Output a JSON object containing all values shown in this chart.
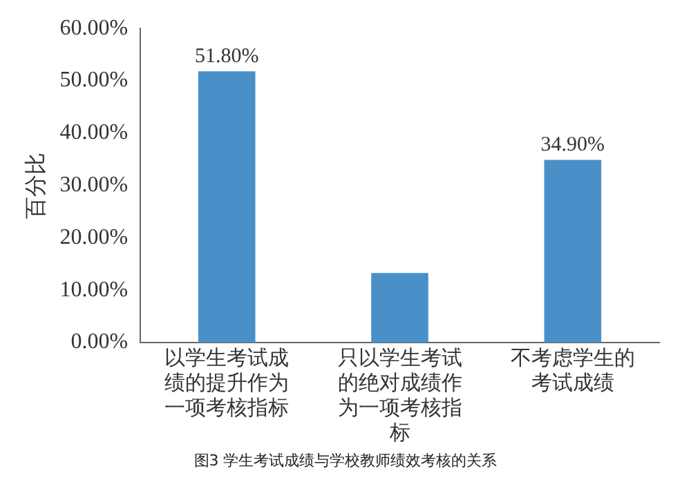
{
  "chart_data": {
    "type": "bar",
    "ylabel": "百分比",
    "categories": [
      "以学生考试成绩的提升作为一项考核指标",
      "只以学生考试的绝对成绩作为一项考核指标",
      "不考虑学生的考试成绩"
    ],
    "values": [
      51.8,
      13.3,
      34.9
    ],
    "value_labels": [
      "51.80%",
      null,
      "34.90%"
    ],
    "color": "#4a90c8",
    "ylim": [
      0,
      60
    ],
    "yticks": [
      {
        "value": 0,
        "label": "0.00%"
      },
      {
        "value": 10,
        "label": "10.00%"
      },
      {
        "value": 20,
        "label": "20.00%"
      },
      {
        "value": 30,
        "label": "30.00%"
      },
      {
        "value": 40,
        "label": "40.00%"
      },
      {
        "value": 50,
        "label": "50.00%"
      },
      {
        "value": 60,
        "label": "60.00%"
      }
    ],
    "grid": false,
    "legend": false,
    "annotations": [
      "图3 学生考试成绩与学校教师绩效考核的关系"
    ]
  }
}
